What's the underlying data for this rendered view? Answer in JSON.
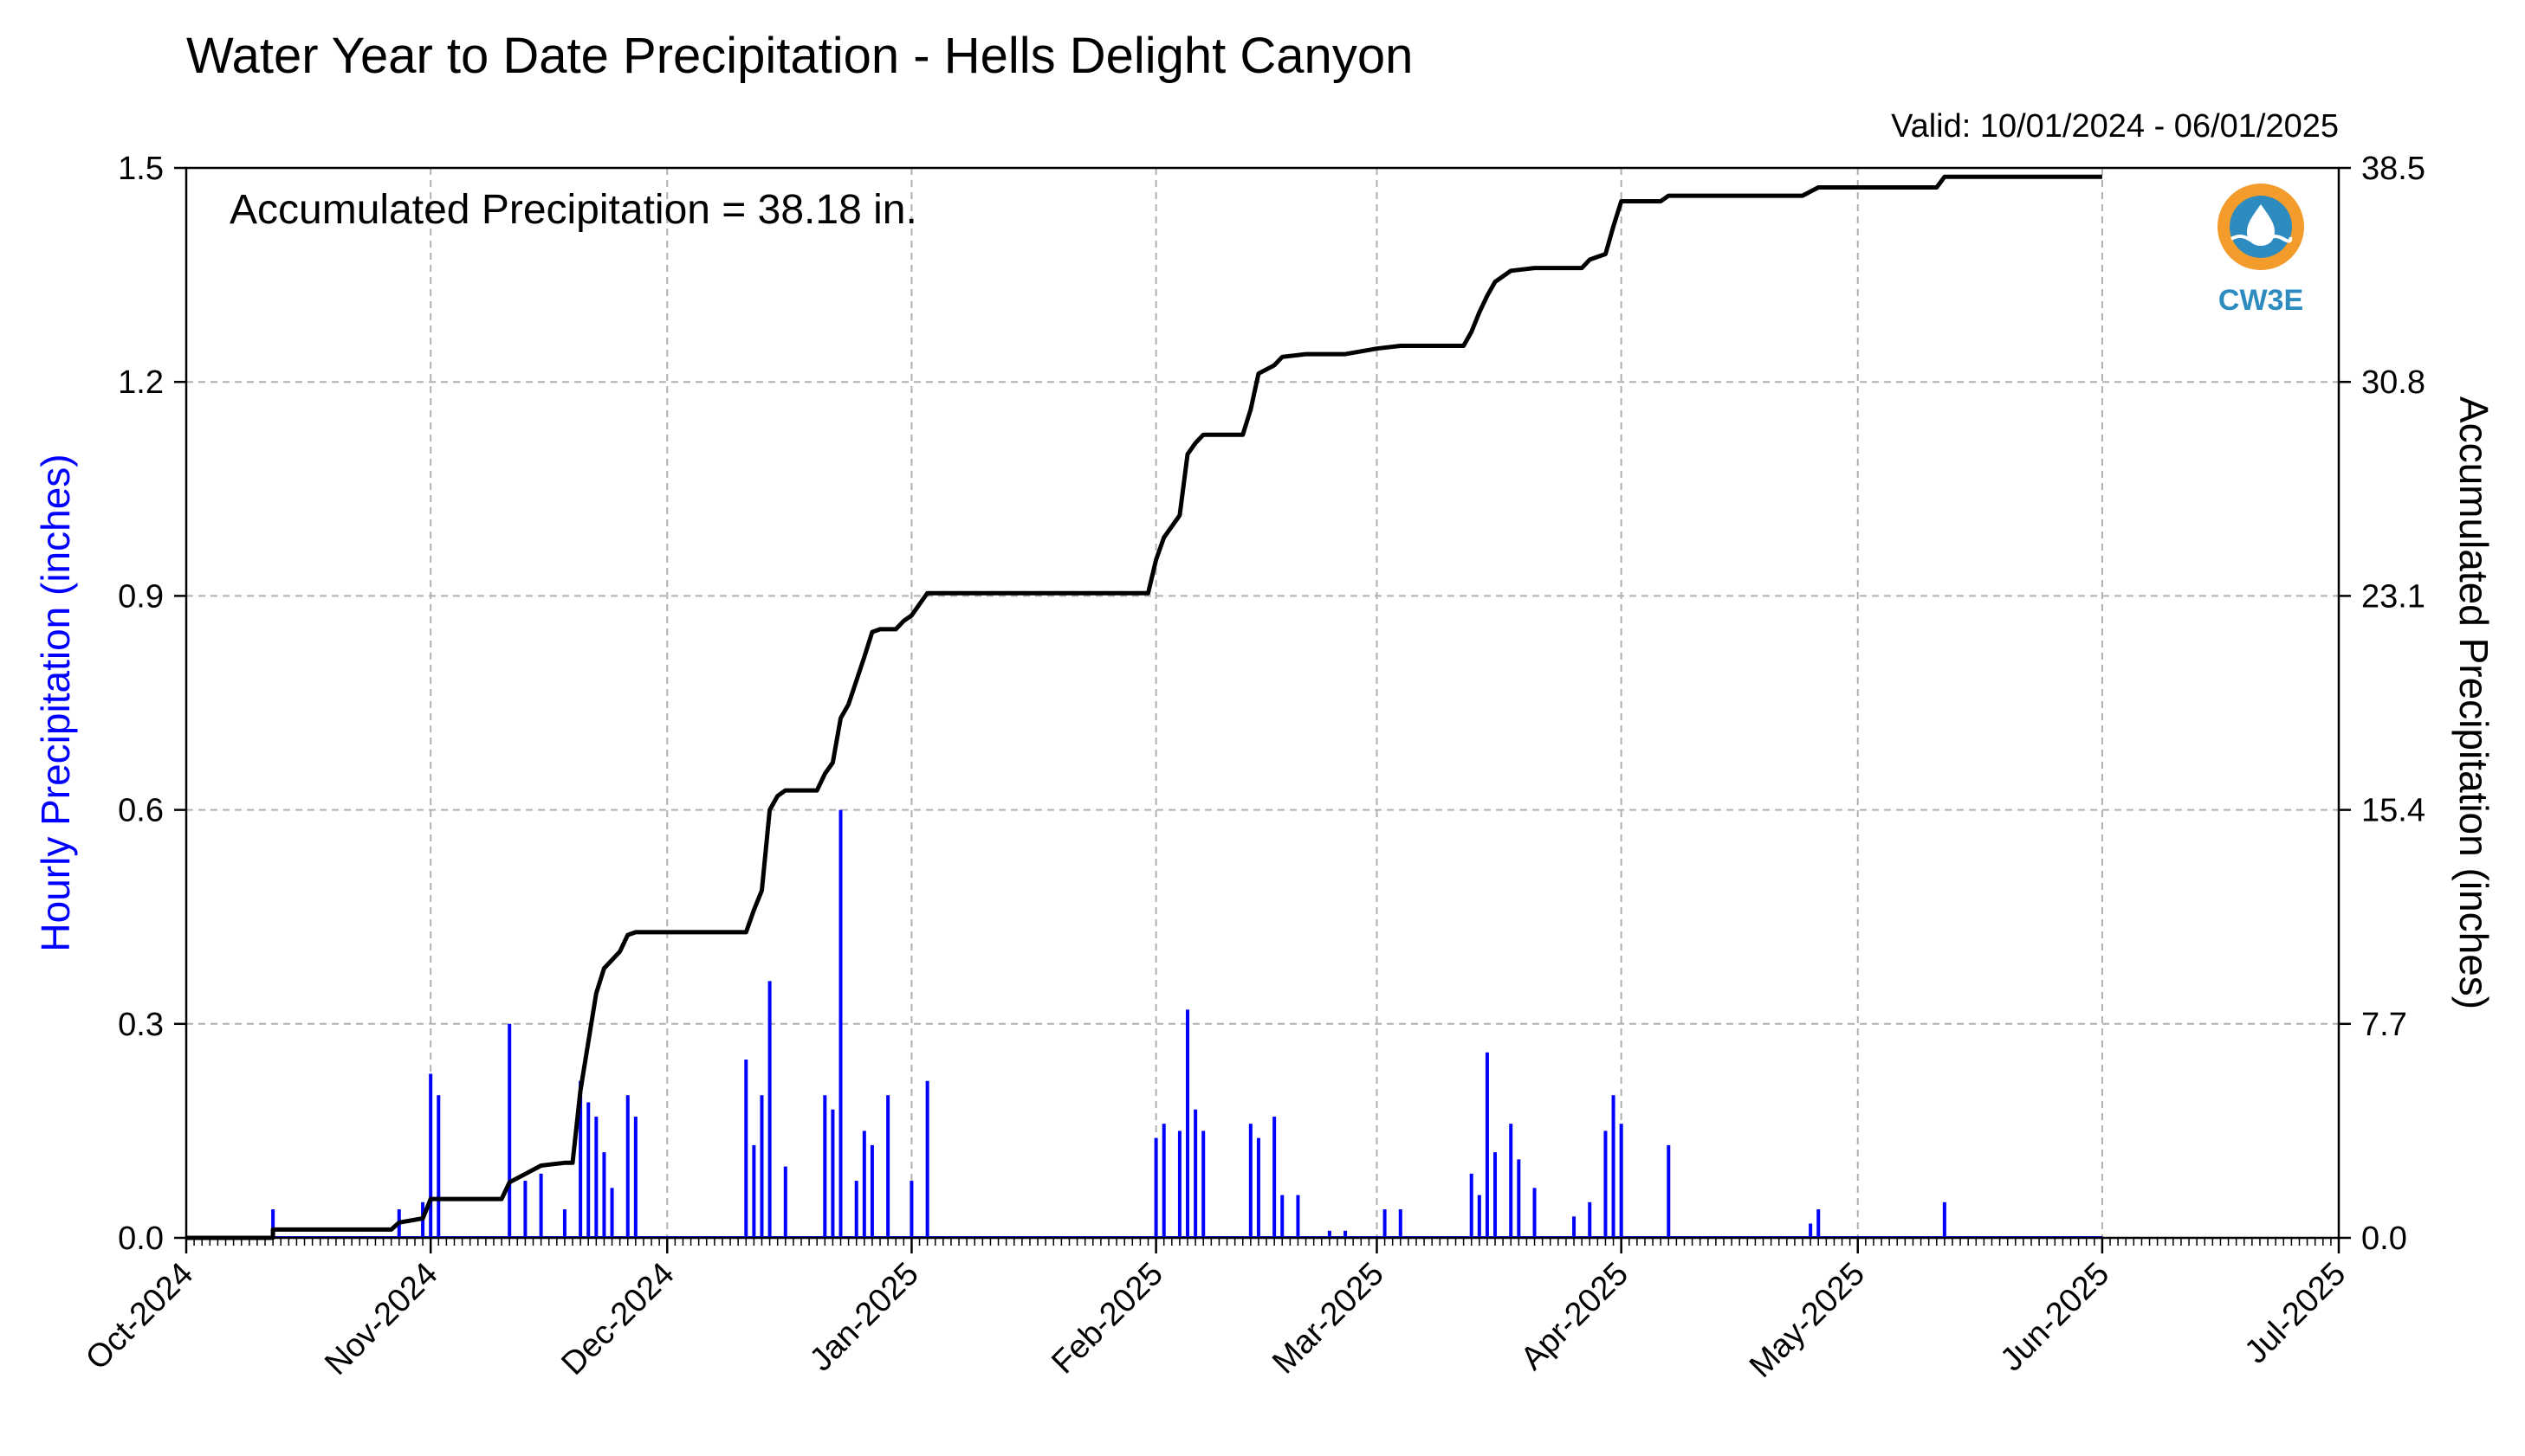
{
  "chart_data": {
    "type": "bar",
    "title": "Water Year to Date Precipitation - Hells Delight Canyon",
    "subtitle": "Valid: 10/01/2024 - 06/01/2025",
    "annotation": "Accumulated Precipitation = 38.18 in.",
    "logo_text": "CW3E",
    "ylabel": "Hourly Precipitation (inches)",
    "y2label": "Accumulated Precipitation (inches)",
    "x_range": [
      "2024-10-01",
      "2025-07-01"
    ],
    "ylim": [
      0,
      1.5
    ],
    "y2lim": [
      0,
      38.5
    ],
    "x_ticks": [
      {
        "label": "Oct-2024",
        "date": "2024-10-01"
      },
      {
        "label": "Nov-2024",
        "date": "2024-11-01"
      },
      {
        "label": "Dec-2024",
        "date": "2024-12-01"
      },
      {
        "label": "Jan-2025",
        "date": "2025-01-01"
      },
      {
        "label": "Feb-2025",
        "date": "2025-02-01"
      },
      {
        "label": "Mar-2025",
        "date": "2025-03-01"
      },
      {
        "label": "Apr-2025",
        "date": "2025-04-01"
      },
      {
        "label": "May-2025",
        "date": "2025-05-01"
      },
      {
        "label": "Jun-2025",
        "date": "2025-06-01"
      },
      {
        "label": "Jul-2025",
        "date": "2025-07-01"
      }
    ],
    "y_ticks": [
      "0.0",
      "0.3",
      "0.6",
      "0.9",
      "1.2",
      "1.5"
    ],
    "y2_ticks": [
      "0.0",
      "7.7",
      "15.4",
      "23.1",
      "30.8",
      "38.5"
    ],
    "grid": true,
    "colors": {
      "hourly": "#0000ff",
      "accumulated": "#000000",
      "grid": "#b0b0b0",
      "logo_orange": "#f39c2b",
      "logo_blue": "#2e8bc0"
    },
    "series": [
      {
        "name": "Hourly Precipitation (inches)",
        "type": "bar",
        "points": [
          [
            "2024-10-12",
            0.04
          ],
          [
            "2024-10-28",
            0.04
          ],
          [
            "2024-10-31",
            0.05
          ],
          [
            "2024-11-01",
            0.23
          ],
          [
            "2024-11-02",
            0.2
          ],
          [
            "2024-11-11",
            0.3
          ],
          [
            "2024-11-13",
            0.08
          ],
          [
            "2024-11-15",
            0.09
          ],
          [
            "2024-11-18",
            0.04
          ],
          [
            "2024-11-20",
            0.22
          ],
          [
            "2024-11-21",
            0.19
          ],
          [
            "2024-11-22",
            0.17
          ],
          [
            "2024-11-23",
            0.12
          ],
          [
            "2024-11-24",
            0.07
          ],
          [
            "2024-11-26",
            0.2
          ],
          [
            "2024-11-27",
            0.17
          ],
          [
            "2024-12-11",
            0.25
          ],
          [
            "2024-12-12",
            0.13
          ],
          [
            "2024-12-13",
            0.2
          ],
          [
            "2024-12-14",
            0.36
          ],
          [
            "2024-12-16",
            0.1
          ],
          [
            "2024-12-21",
            0.2
          ],
          [
            "2024-12-22",
            0.18
          ],
          [
            "2024-12-23",
            0.6
          ],
          [
            "2024-12-25",
            0.08
          ],
          [
            "2024-12-26",
            0.15
          ],
          [
            "2024-12-27",
            0.13
          ],
          [
            "2024-12-29",
            0.2
          ],
          [
            "2025-01-01",
            0.08
          ],
          [
            "2025-01-03",
            0.22
          ],
          [
            "2025-02-01",
            0.14
          ],
          [
            "2025-02-02",
            0.16
          ],
          [
            "2025-02-04",
            0.15
          ],
          [
            "2025-02-05",
            0.32
          ],
          [
            "2025-02-06",
            0.18
          ],
          [
            "2025-02-07",
            0.15
          ],
          [
            "2025-02-13",
            0.16
          ],
          [
            "2025-02-14",
            0.14
          ],
          [
            "2025-02-16",
            0.17
          ],
          [
            "2025-02-17",
            0.06
          ],
          [
            "2025-02-19",
            0.06
          ],
          [
            "2025-02-23",
            0.01
          ],
          [
            "2025-02-25",
            0.01
          ],
          [
            "2025-03-02",
            0.04
          ],
          [
            "2025-03-04",
            0.04
          ],
          [
            "2025-03-13",
            0.09
          ],
          [
            "2025-03-14",
            0.06
          ],
          [
            "2025-03-15",
            0.26
          ],
          [
            "2025-03-16",
            0.12
          ],
          [
            "2025-03-18",
            0.16
          ],
          [
            "2025-03-19",
            0.11
          ],
          [
            "2025-03-21",
            0.07
          ],
          [
            "2025-03-26",
            0.03
          ],
          [
            "2025-03-28",
            0.05
          ],
          [
            "2025-03-30",
            0.15
          ],
          [
            "2025-03-31",
            0.2
          ],
          [
            "2025-04-01",
            0.16
          ],
          [
            "2025-04-07",
            0.13
          ],
          [
            "2025-04-25",
            0.02
          ],
          [
            "2025-04-26",
            0.04
          ],
          [
            "2025-05-12",
            0.05
          ]
        ]
      },
      {
        "name": "Accumulated Precipitation (inches)",
        "type": "line",
        "points": [
          [
            "2024-10-01",
            0.0
          ],
          [
            "2024-10-12",
            0.0
          ],
          [
            "2024-10-12",
            0.3
          ],
          [
            "2024-10-27",
            0.3
          ],
          [
            "2024-10-28",
            0.55
          ],
          [
            "2024-10-31",
            0.7
          ],
          [
            "2024-11-01",
            1.4
          ],
          [
            "2024-11-10",
            1.4
          ],
          [
            "2024-11-11",
            2.0
          ],
          [
            "2024-11-13",
            2.3
          ],
          [
            "2024-11-15",
            2.6
          ],
          [
            "2024-11-18",
            2.7
          ],
          [
            "2024-11-19",
            2.7
          ],
          [
            "2024-11-20",
            5.3
          ],
          [
            "2024-11-22",
            8.8
          ],
          [
            "2024-11-23",
            9.7
          ],
          [
            "2024-11-24",
            10.0
          ],
          [
            "2024-11-25",
            10.3
          ],
          [
            "2024-11-26",
            10.9
          ],
          [
            "2024-11-27",
            11.0
          ],
          [
            "2024-12-11",
            11.0
          ],
          [
            "2024-12-12",
            11.8
          ],
          [
            "2024-12-13",
            12.5
          ],
          [
            "2024-12-14",
            15.4
          ],
          [
            "2024-12-15",
            15.9
          ],
          [
            "2024-12-16",
            16.1
          ],
          [
            "2024-12-20",
            16.1
          ],
          [
            "2024-12-21",
            16.7
          ],
          [
            "2024-12-22",
            17.1
          ],
          [
            "2024-12-23",
            18.7
          ],
          [
            "2024-12-24",
            19.2
          ],
          [
            "2024-12-26",
            20.9
          ],
          [
            "2024-12-27",
            21.8
          ],
          [
            "2024-12-28",
            21.9
          ],
          [
            "2024-12-30",
            21.9
          ],
          [
            "2024-12-31",
            22.2
          ],
          [
            "2025-01-01",
            22.4
          ],
          [
            "2025-01-03",
            23.2
          ],
          [
            "2025-01-31",
            23.2
          ],
          [
            "2025-02-01",
            24.4
          ],
          [
            "2025-02-02",
            25.2
          ],
          [
            "2025-02-04",
            26.0
          ],
          [
            "2025-02-05",
            28.2
          ],
          [
            "2025-02-06",
            28.6
          ],
          [
            "2025-02-07",
            28.9
          ],
          [
            "2025-02-12",
            28.9
          ],
          [
            "2025-02-13",
            29.8
          ],
          [
            "2025-02-14",
            31.1
          ],
          [
            "2025-02-16",
            31.4
          ],
          [
            "2025-02-17",
            31.7
          ],
          [
            "2025-02-20",
            31.8
          ],
          [
            "2025-02-25",
            31.8
          ],
          [
            "2025-03-01",
            32.0
          ],
          [
            "2025-03-04",
            32.1
          ],
          [
            "2025-03-12",
            32.1
          ],
          [
            "2025-03-13",
            32.6
          ],
          [
            "2025-03-14",
            33.3
          ],
          [
            "2025-03-15",
            33.9
          ],
          [
            "2025-03-16",
            34.4
          ],
          [
            "2025-03-18",
            34.8
          ],
          [
            "2025-03-21",
            34.9
          ],
          [
            "2025-03-27",
            34.9
          ],
          [
            "2025-03-28",
            35.2
          ],
          [
            "2025-03-30",
            35.4
          ],
          [
            "2025-03-31",
            36.4
          ],
          [
            "2025-04-01",
            37.3
          ],
          [
            "2025-04-06",
            37.3
          ],
          [
            "2025-04-07",
            37.5
          ],
          [
            "2025-04-24",
            37.5
          ],
          [
            "2025-04-26",
            37.8
          ],
          [
            "2025-05-11",
            37.8
          ],
          [
            "2025-05-12",
            38.18
          ],
          [
            "2025-06-01",
            38.18
          ]
        ]
      }
    ]
  }
}
